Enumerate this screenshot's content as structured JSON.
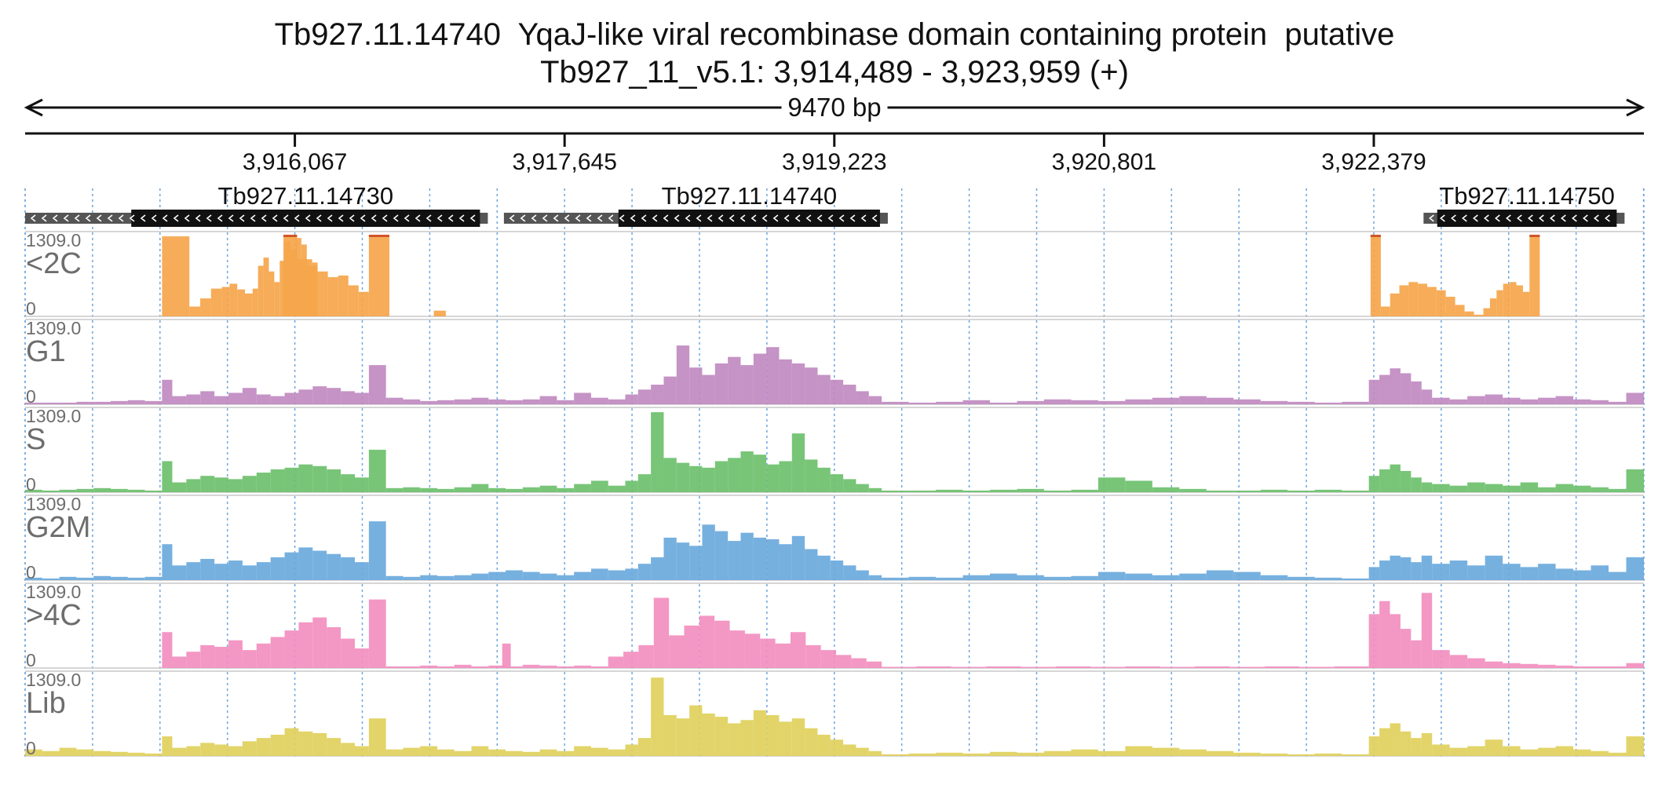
{
  "title": {
    "line1": "Tb927.11.14740  YqaJ-like viral recombinase domain containing protein  putative",
    "line2": "Tb927_11_v5.1: 3,914,489 - 3,923,959 (+)"
  },
  "chart_data": {
    "type": "area",
    "region": {
      "start": 3914489,
      "end": 3923959,
      "span_label": "9470 bp"
    },
    "ticks": [
      {
        "pos": 3916067,
        "label": "3,916,067"
      },
      {
        "pos": 3917645,
        "label": "3,917,645"
      },
      {
        "pos": 3919223,
        "label": "3,919,223"
      },
      {
        "pos": 3920801,
        "label": "3,920,801"
      },
      {
        "pos": 3922379,
        "label": "3,922,379"
      }
    ],
    "genes": [
      {
        "name": "Tb927.11.14730",
        "start": 3914489,
        "utr_end": 3915110,
        "cds_end": 3917150,
        "strand": "-"
      },
      {
        "name": "Tb927.11.14740",
        "start": 3917290,
        "utr_end": 3917960,
        "cds_end": 3919490,
        "strand": "-"
      },
      {
        "name": "Tb927.11.14750",
        "start": 3922670,
        "utr_end": 3922750,
        "cds_end": 3923800,
        "strand": "-"
      }
    ],
    "tracks": [
      {
        "name": "<2C",
        "max_label": "1309.0",
        "zero_label": "0",
        "color": "#f5a54a",
        "segments": [
          {
            "start": 3915290,
            "end": 3915450,
            "values": [
              0.98
            ]
          },
          {
            "start": 3915450,
            "end": 3915640,
            "values": [
              0.12,
              0.22,
              0.34
            ]
          },
          {
            "start": 3915640,
            "end": 3915820,
            "values": [
              0.36,
              0.4,
              0.33,
              0.28
            ]
          },
          {
            "start": 3915820,
            "end": 3916200,
            "values": [
              0.34,
              0.62,
              0.72,
              0.55,
              0.42,
              0.68,
              0.92,
              0.82,
              0.96,
              0.88,
              0.7,
              0.66
            ]
          },
          {
            "start": 3916000,
            "end": 3916080,
            "values": [
              1.0
            ]
          },
          {
            "start": 3916080,
            "end": 3916500,
            "values": [
              0.7,
              0.62,
              0.55,
              0.48,
              0.5,
              0.38,
              0.3
            ]
          },
          {
            "start": 3916500,
            "end": 3916620,
            "values": [
              1.0
            ]
          },
          {
            "start": 3916700,
            "end": 3916950,
            "values": [
              0.0
            ]
          },
          {
            "start": 3916880,
            "end": 3916950,
            "values": [
              0.07
            ]
          },
          {
            "start": 3922360,
            "end": 3922420,
            "values": [
              1.0
            ]
          },
          {
            "start": 3922420,
            "end": 3922800,
            "values": [
              0.12,
              0.28,
              0.38,
              0.42,
              0.4,
              0.36,
              0.32
            ]
          },
          {
            "start": 3922800,
            "end": 3923020,
            "values": [
              0.24,
              0.14,
              0.06,
              0.02
            ]
          },
          {
            "start": 3923020,
            "end": 3923290,
            "values": [
              0.1,
              0.22,
              0.32,
              0.4,
              0.42,
              0.38,
              0.3
            ]
          },
          {
            "start": 3923290,
            "end": 3923350,
            "values": [
              1.0
            ]
          }
        ]
      },
      {
        "name": "G1",
        "max_label": "1309.0",
        "zero_label": "0",
        "color": "#c08ac0",
        "segments": [
          {
            "start": 3914489,
            "end": 3915290,
            "values": [
              0.02,
              0.02,
              0.02,
              0.03,
              0.03,
              0.04,
              0.05,
              0.04
            ]
          },
          {
            "start": 3915290,
            "end": 3915350,
            "values": [
              0.3
            ]
          },
          {
            "start": 3915350,
            "end": 3916500,
            "values": [
              0.1,
              0.12,
              0.16,
              0.1,
              0.14,
              0.2,
              0.12,
              0.1,
              0.14,
              0.18,
              0.22,
              0.2,
              0.16,
              0.14
            ]
          },
          {
            "start": 3916500,
            "end": 3916600,
            "values": [
              0.48
            ]
          },
          {
            "start": 3916600,
            "end": 3918000,
            "values": [
              0.08,
              0.06,
              0.04,
              0.05,
              0.06,
              0.08,
              0.06,
              0.05,
              0.06,
              0.1,
              0.05,
              0.14,
              0.08,
              0.06
            ]
          },
          {
            "start": 3918000,
            "end": 3919500,
            "values": [
              0.12,
              0.18,
              0.24,
              0.34,
              0.72,
              0.45,
              0.36,
              0.5,
              0.58,
              0.48,
              0.62,
              0.7,
              0.55,
              0.5,
              0.45,
              0.36,
              0.3,
              0.24,
              0.16,
              0.1
            ]
          },
          {
            "start": 3919500,
            "end": 3922350,
            "values": [
              0.03,
              0.02,
              0.03,
              0.05,
              0.02,
              0.04,
              0.06,
              0.05,
              0.04,
              0.06,
              0.08,
              0.1,
              0.08,
              0.06,
              0.04,
              0.03,
              0.02,
              0.03
            ]
          },
          {
            "start": 3922350,
            "end": 3922720,
            "values": [
              0.3,
              0.36,
              0.44,
              0.38,
              0.28,
              0.18
            ]
          },
          {
            "start": 3922720,
            "end": 3923959,
            "values": [
              0.08,
              0.06,
              0.1,
              0.12,
              0.08,
              0.06,
              0.08,
              0.1,
              0.06,
              0.05,
              0.03,
              0.14
            ]
          }
        ]
      },
      {
        "name": "S",
        "max_label": "1309.0",
        "zero_label": "0",
        "color": "#6cc06c",
        "segments": [
          {
            "start": 3914489,
            "end": 3915290,
            "values": [
              0.03,
              0.02,
              0.03,
              0.04,
              0.05,
              0.04,
              0.03,
              0.02
            ]
          },
          {
            "start": 3915290,
            "end": 3915350,
            "values": [
              0.38
            ]
          },
          {
            "start": 3915350,
            "end": 3916500,
            "values": [
              0.12,
              0.16,
              0.2,
              0.18,
              0.16,
              0.2,
              0.24,
              0.28,
              0.3,
              0.34,
              0.32,
              0.28,
              0.22,
              0.18
            ]
          },
          {
            "start": 3916500,
            "end": 3916600,
            "values": [
              0.52
            ]
          },
          {
            "start": 3916600,
            "end": 3918000,
            "values": [
              0.05,
              0.06,
              0.05,
              0.04,
              0.06,
              0.1,
              0.05,
              0.04,
              0.06,
              0.08,
              0.05,
              0.1,
              0.14,
              0.08
            ]
          },
          {
            "start": 3918000,
            "end": 3919500,
            "values": [
              0.14,
              0.22,
              0.98,
              0.42,
              0.36,
              0.32,
              0.3,
              0.38,
              0.42,
              0.5,
              0.46,
              0.34,
              0.38,
              0.72,
              0.4,
              0.3,
              0.22,
              0.16,
              0.1,
              0.05
            ]
          },
          {
            "start": 3919500,
            "end": 3922350,
            "values": [
              0.02,
              0.02,
              0.03,
              0.02,
              0.03,
              0.04,
              0.02,
              0.03,
              0.18,
              0.14,
              0.06,
              0.04,
              0.02,
              0.02,
              0.03,
              0.02,
              0.03,
              0.02
            ]
          },
          {
            "start": 3922350,
            "end": 3922720,
            "values": [
              0.2,
              0.28,
              0.34,
              0.26,
              0.18,
              0.12
            ]
          },
          {
            "start": 3922720,
            "end": 3923959,
            "values": [
              0.1,
              0.08,
              0.12,
              0.1,
              0.08,
              0.12,
              0.06,
              0.1,
              0.08,
              0.06,
              0.04,
              0.28
            ]
          }
        ]
      },
      {
        "name": "G2M",
        "max_label": "1309.0",
        "zero_label": "0",
        "color": "#6aa9dc",
        "segments": [
          {
            "start": 3914489,
            "end": 3915290,
            "values": [
              0.03,
              0.02,
              0.04,
              0.03,
              0.05,
              0.04,
              0.03,
              0.04
            ]
          },
          {
            "start": 3915290,
            "end": 3915350,
            "values": [
              0.44
            ]
          },
          {
            "start": 3915350,
            "end": 3916500,
            "values": [
              0.18,
              0.22,
              0.26,
              0.2,
              0.24,
              0.18,
              0.22,
              0.28,
              0.34,
              0.4,
              0.36,
              0.32,
              0.28,
              0.22
            ]
          },
          {
            "start": 3916500,
            "end": 3916600,
            "values": [
              0.72
            ]
          },
          {
            "start": 3916600,
            "end": 3918000,
            "values": [
              0.05,
              0.04,
              0.06,
              0.05,
              0.06,
              0.08,
              0.1,
              0.12,
              0.1,
              0.08,
              0.06,
              0.1,
              0.14,
              0.12
            ]
          },
          {
            "start": 3918000,
            "end": 3919500,
            "values": [
              0.14,
              0.2,
              0.28,
              0.52,
              0.46,
              0.42,
              0.68,
              0.6,
              0.48,
              0.58,
              0.52,
              0.5,
              0.44,
              0.54,
              0.38,
              0.3,
              0.24,
              0.18,
              0.12,
              0.06
            ]
          },
          {
            "start": 3919500,
            "end": 3922350,
            "values": [
              0.03,
              0.04,
              0.03,
              0.06,
              0.08,
              0.06,
              0.04,
              0.05,
              0.1,
              0.08,
              0.06,
              0.08,
              0.12,
              0.1,
              0.06,
              0.04,
              0.03,
              0.02
            ]
          },
          {
            "start": 3922350,
            "end": 3922720,
            "values": [
              0.16,
              0.24,
              0.3,
              0.28,
              0.22,
              0.3
            ]
          },
          {
            "start": 3922720,
            "end": 3923959,
            "values": [
              0.2,
              0.24,
              0.18,
              0.3,
              0.2,
              0.16,
              0.2,
              0.14,
              0.12,
              0.18,
              0.1,
              0.28
            ]
          }
        ]
      },
      {
        "name": ">4C",
        "max_label": "1309.0",
        "zero_label": "0",
        "color": "#f28ebf",
        "segments": [
          {
            "start": 3915290,
            "end": 3915350,
            "values": [
              0.44
            ]
          },
          {
            "start": 3915350,
            "end": 3916500,
            "values": [
              0.14,
              0.2,
              0.28,
              0.26,
              0.34,
              0.22,
              0.3,
              0.38,
              0.46,
              0.56,
              0.62,
              0.5,
              0.36,
              0.24
            ]
          },
          {
            "start": 3916500,
            "end": 3916600,
            "values": [
              0.84
            ]
          },
          {
            "start": 3916600,
            "end": 3917900,
            "values": [
              0.02,
              0.02,
              0.03,
              0.02,
              0.04,
              0.02,
              0.03,
              0.02,
              0.04,
              0.03,
              0.02,
              0.03,
              0.02
            ]
          },
          {
            "start": 3917280,
            "end": 3917330,
            "values": [
              0.3
            ]
          },
          {
            "start": 3917900,
            "end": 3919500,
            "values": [
              0.14,
              0.2,
              0.28,
              0.86,
              0.4,
              0.52,
              0.64,
              0.58,
              0.46,
              0.42,
              0.36,
              0.3,
              0.44,
              0.28,
              0.22,
              0.16,
              0.12,
              0.08
            ]
          },
          {
            "start": 3919500,
            "end": 3922350,
            "values": [
              0.01,
              0.02,
              0.01,
              0.02,
              0.01,
              0.02,
              0.01,
              0.02,
              0.01,
              0.02,
              0.01,
              0.02,
              0.01,
              0.02
            ]
          },
          {
            "start": 3922350,
            "end": 3922720,
            "values": [
              0.66,
              0.82,
              0.66,
              0.48,
              0.34,
              0.92
            ]
          },
          {
            "start": 3922720,
            "end": 3923959,
            "values": [
              0.22,
              0.16,
              0.12,
              0.08,
              0.06,
              0.05,
              0.04,
              0.03,
              0.02,
              0.02,
              0.02,
              0.06
            ]
          }
        ]
      },
      {
        "name": "Lib",
        "max_label": "1309.0",
        "zero_label": "0",
        "color": "#e0d05c",
        "segments": [
          {
            "start": 3914489,
            "end": 3915290,
            "values": [
              0.08,
              0.06,
              0.1,
              0.08,
              0.06,
              0.05,
              0.04,
              0.03
            ]
          },
          {
            "start": 3915290,
            "end": 3915350,
            "values": [
              0.24
            ]
          },
          {
            "start": 3915350,
            "end": 3916500,
            "values": [
              0.1,
              0.12,
              0.16,
              0.14,
              0.12,
              0.18,
              0.22,
              0.26,
              0.34,
              0.3,
              0.28,
              0.22,
              0.16,
              0.12
            ]
          },
          {
            "start": 3916500,
            "end": 3916600,
            "values": [
              0.46
            ]
          },
          {
            "start": 3916600,
            "end": 3918000,
            "values": [
              0.08,
              0.1,
              0.12,
              0.08,
              0.06,
              0.12,
              0.08,
              0.06,
              0.05,
              0.08,
              0.06,
              0.12,
              0.1,
              0.08
            ]
          },
          {
            "start": 3918000,
            "end": 3919500,
            "values": [
              0.14,
              0.22,
              0.96,
              0.5,
              0.46,
              0.62,
              0.52,
              0.48,
              0.4,
              0.44,
              0.56,
              0.5,
              0.42,
              0.46,
              0.34,
              0.26,
              0.2,
              0.14,
              0.1,
              0.06
            ]
          },
          {
            "start": 3919500,
            "end": 3922350,
            "values": [
              0.02,
              0.03,
              0.04,
              0.03,
              0.05,
              0.04,
              0.06,
              0.08,
              0.06,
              0.12,
              0.1,
              0.08,
              0.06,
              0.04,
              0.03,
              0.02,
              0.03,
              0.02
            ]
          },
          {
            "start": 3922350,
            "end": 3922720,
            "values": [
              0.24,
              0.34,
              0.4,
              0.3,
              0.22,
              0.28
            ]
          },
          {
            "start": 3922720,
            "end": 3923959,
            "values": [
              0.14,
              0.1,
              0.12,
              0.2,
              0.12,
              0.08,
              0.1,
              0.12,
              0.08,
              0.06,
              0.04,
              0.24
            ]
          }
        ]
      }
    ]
  }
}
